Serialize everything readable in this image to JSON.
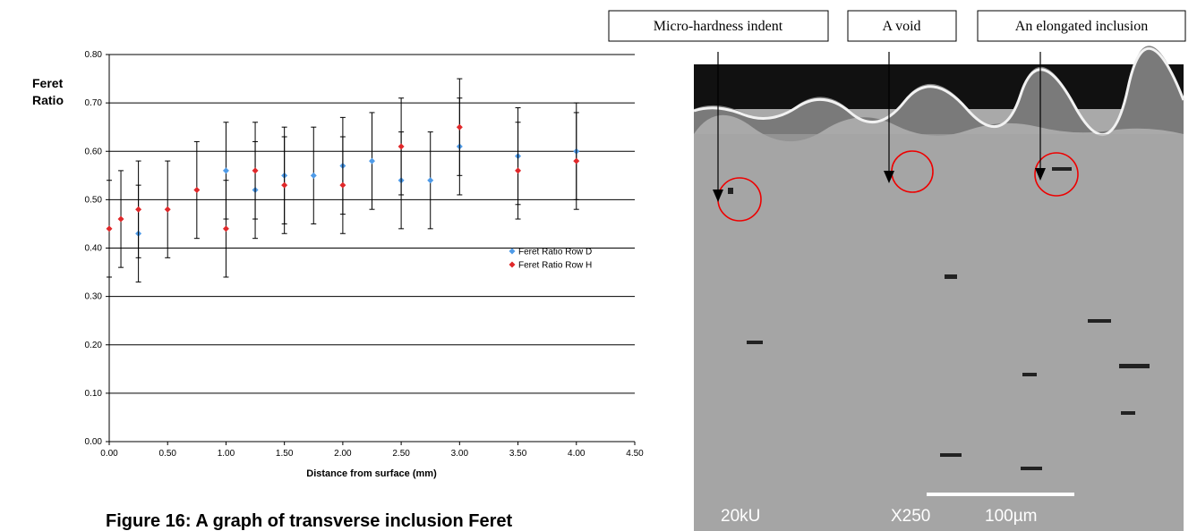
{
  "chart_data": {
    "type": "scatter",
    "ylabel": "Feret Ratio",
    "xlabel": "Distance from surface (mm)",
    "xlim": [
      0,
      4.5
    ],
    "ylim": [
      0,
      0.8
    ],
    "xticks": [
      {
        "value": 0,
        "label": "0.00"
      },
      {
        "value": 0.5,
        "label": "0.50"
      },
      {
        "value": 1,
        "label": "1.00"
      },
      {
        "value": 1.5,
        "label": "1.50"
      },
      {
        "value": 2,
        "label": "2.00"
      },
      {
        "value": 2.5,
        "label": "2.50"
      },
      {
        "value": 3,
        "label": "3.00"
      },
      {
        "value": 3.5,
        "label": "3.50"
      },
      {
        "value": 4,
        "label": "4.00"
      },
      {
        "value": 4.5,
        "label": "4.50"
      }
    ],
    "yticks": [
      {
        "value": 0,
        "label": "0.00"
      },
      {
        "value": 0.1,
        "label": "0.10"
      },
      {
        "value": 0.2,
        "label": "0.20"
      },
      {
        "value": 0.3,
        "label": "0.30"
      },
      {
        "value": 0.4,
        "label": "0.40"
      },
      {
        "value": 0.5,
        "label": "0.50"
      },
      {
        "value": 0.6,
        "label": "0.60"
      },
      {
        "value": 0.7,
        "label": "0.70"
      },
      {
        "value": 0.8,
        "label": "0.80"
      }
    ],
    "grid": true,
    "legend": "right",
    "series": [
      {
        "name": "Feret Ratio Row D",
        "color": "#4f9be8",
        "x": [
          0.25,
          1,
          1.25,
          1.5,
          1.75,
          2,
          2.25,
          2.5,
          2.75,
          3,
          3.5,
          4
        ],
        "values": [
          0.43,
          0.56,
          0.52,
          0.55,
          0.55,
          0.57,
          0.58,
          0.54,
          0.54,
          0.61,
          0.59,
          0.6
        ],
        "errors": [
          0.1,
          0.1,
          0.1,
          0.1,
          0.1,
          0.1,
          0.1,
          0.1,
          0.1,
          0.1,
          0.1,
          0.1
        ]
      },
      {
        "name": "Feret Ratio Row H",
        "color": "#e0282a",
        "x": [
          0,
          0.1,
          0.25,
          0.5,
          0.75,
          1,
          1.25,
          1.5,
          2,
          2.5,
          3,
          3.5,
          4
        ],
        "values": [
          0.44,
          0.46,
          0.48,
          0.48,
          0.52,
          0.44,
          0.56,
          0.53,
          0.53,
          0.61,
          0.65,
          0.56,
          0.58
        ],
        "errors": [
          0.1,
          0.1,
          0.1,
          0.1,
          0.1,
          0.1,
          0.1,
          0.1,
          0.1,
          0.1,
          0.1,
          0.1,
          0.1
        ]
      }
    ]
  },
  "caption": "Figure 16: A graph of transverse inclusion Feret",
  "image": {
    "annotations": [
      "Micro-hardness indent",
      "A void",
      "An elongated inclusion"
    ],
    "info": [
      "20kU",
      "X250",
      "100µm"
    ]
  }
}
